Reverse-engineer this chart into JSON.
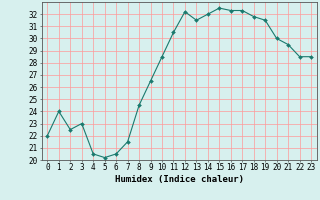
{
  "x": [
    0,
    1,
    2,
    3,
    4,
    5,
    6,
    7,
    8,
    9,
    10,
    11,
    12,
    13,
    14,
    15,
    16,
    17,
    18,
    19,
    20,
    21,
    22,
    23
  ],
  "y": [
    22,
    24,
    22.5,
    23,
    20.5,
    20.2,
    20.5,
    21.5,
    24.5,
    26.5,
    28.5,
    30.5,
    32.2,
    31.5,
    32,
    32.5,
    32.3,
    32.3,
    31.8,
    31.5,
    30,
    29.5,
    28.5,
    28.5
  ],
  "line_color": "#1a7a6e",
  "marker": "D",
  "marker_size": 2,
  "bg_color": "#d7f0ee",
  "grid_color": "#ff9999",
  "xlabel": "Humidex (Indice chaleur)",
  "ylim": [
    20,
    33
  ],
  "xlim": [
    -0.5,
    23.5
  ],
  "yticks": [
    20,
    21,
    22,
    23,
    24,
    25,
    26,
    27,
    28,
    29,
    30,
    31,
    32
  ],
  "xtick_labels": [
    "0",
    "1",
    "2",
    "3",
    "4",
    "5",
    "6",
    "7",
    "8",
    "9",
    "10",
    "11",
    "12",
    "13",
    "14",
    "15",
    "16",
    "17",
    "18",
    "19",
    "20",
    "21",
    "22",
    "23"
  ],
  "xlabel_fontsize": 6.5,
  "tick_fontsize": 5.5
}
